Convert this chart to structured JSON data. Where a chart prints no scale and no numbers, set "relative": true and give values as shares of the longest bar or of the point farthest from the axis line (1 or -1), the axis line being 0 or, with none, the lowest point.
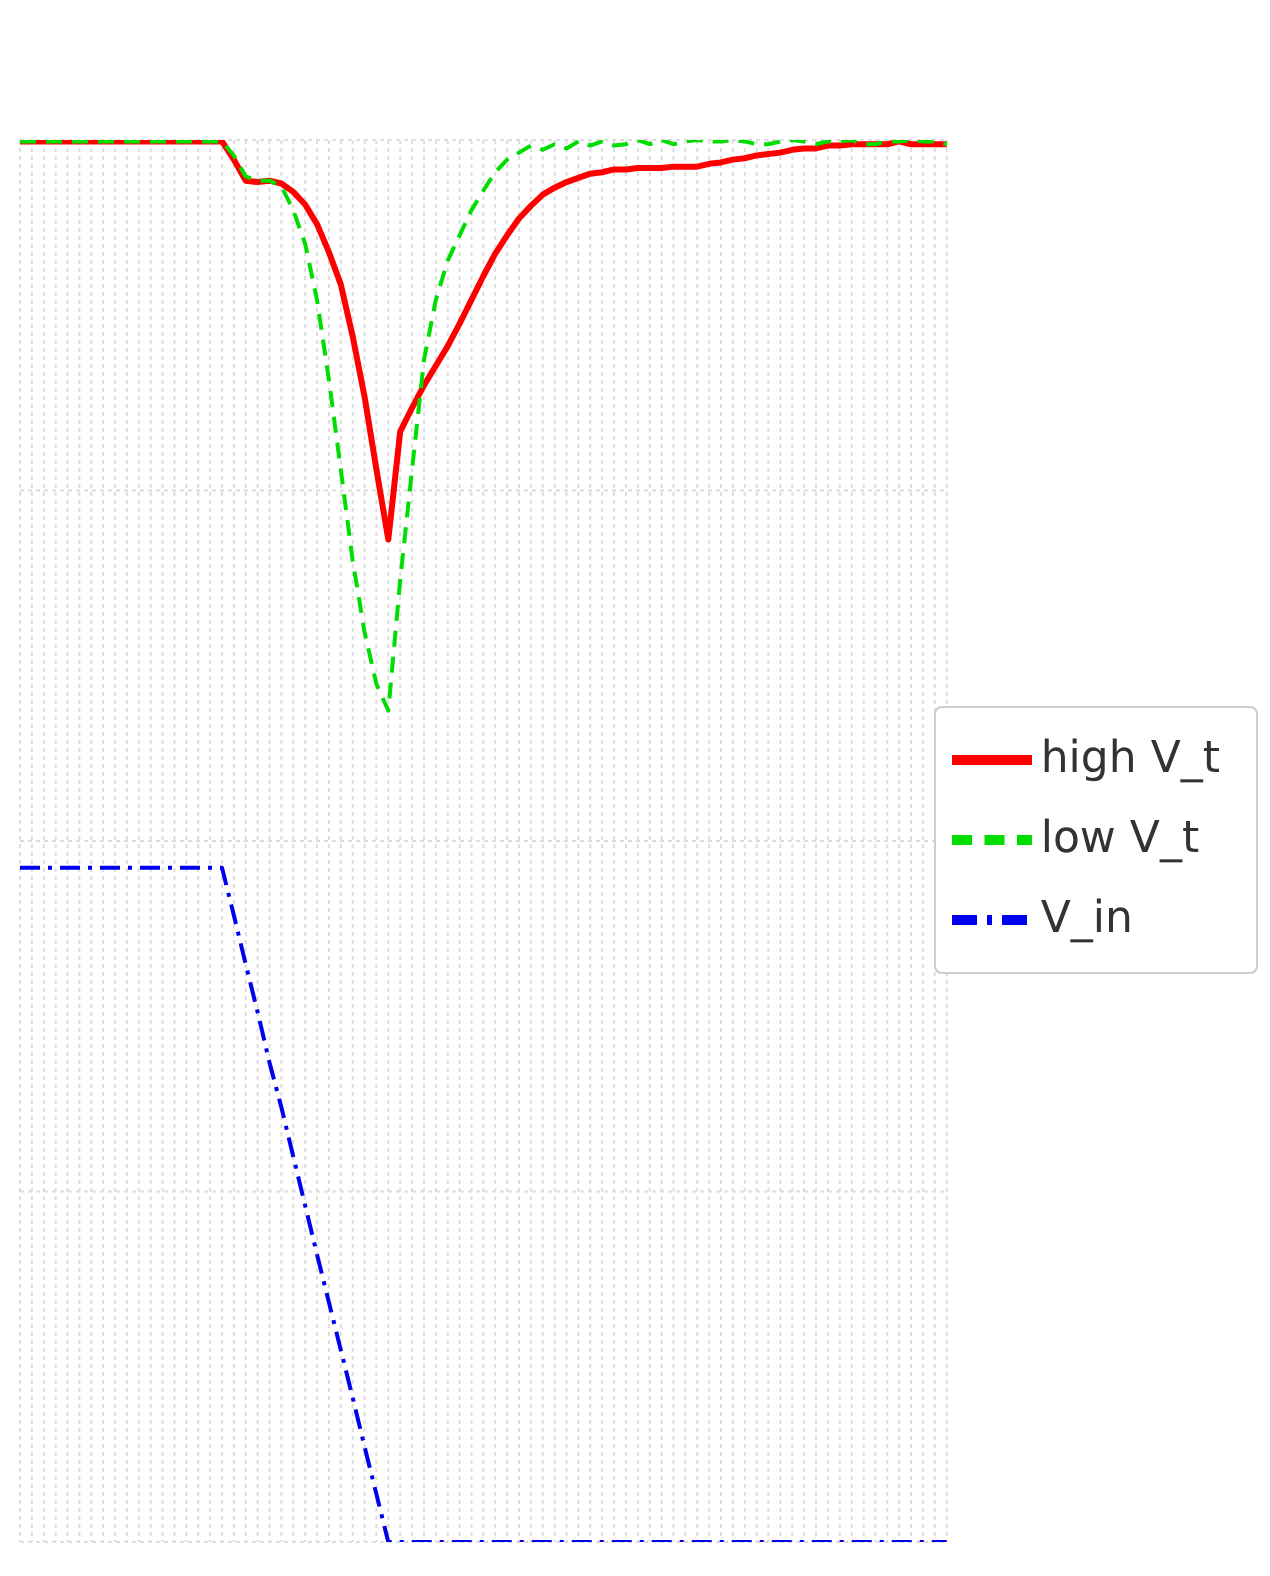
{
  "chart_data": {
    "type": "line",
    "relative": true,
    "grid": true,
    "legend": "right",
    "marker": "none",
    "categories": [
      null,
      null,
      null,
      null,
      null,
      null,
      null,
      null,
      null,
      null,
      null,
      null,
      null,
      null,
      null,
      null,
      null,
      null,
      null,
      null,
      null,
      null,
      null,
      null,
      null,
      null,
      null,
      null,
      null,
      null,
      null,
      null,
      null,
      null,
      null,
      null,
      null,
      null,
      null,
      null,
      null,
      null,
      null,
      null,
      null,
      null,
      null,
      null,
      null,
      null,
      null,
      null,
      null,
      null,
      null,
      null,
      null,
      null,
      null,
      null,
      null,
      null,
      null,
      null,
      null,
      null,
      null,
      null,
      null,
      null,
      null,
      null,
      null,
      null,
      null,
      null,
      null,
      null,
      null
    ],
    "series": [
      {
        "name": "high V_t",
        "color": "#ff0000",
        "line_style": "solid",
        "values": [
          0.999,
          0.999,
          0.999,
          0.999,
          0.999,
          0.999,
          0.999,
          0.999,
          0.999,
          0.999,
          0.999,
          0.999,
          0.999,
          0.999,
          0.999,
          0.999,
          0.999,
          0.999,
          0.986,
          0.971,
          0.97,
          0.971,
          0.969,
          0.963,
          0.954,
          0.94,
          0.92,
          0.897,
          0.86,
          0.817,
          0.765,
          0.715,
          0.792,
          0.809,
          0.825,
          0.839,
          0.853,
          0.869,
          0.886,
          0.903,
          0.919,
          0.932,
          0.944,
          0.953,
          0.961,
          0.966,
          0.97,
          0.973,
          0.976,
          0.977,
          0.979,
          0.979,
          0.98,
          0.98,
          0.98,
          0.981,
          0.981,
          0.981,
          0.983,
          0.984,
          0.986,
          0.987,
          0.989,
          0.99,
          0.991,
          0.993,
          0.994,
          0.994,
          0.996,
          0.996,
          0.997,
          0.997,
          0.997,
          0.997,
          0.999,
          0.997,
          0.997,
          0.997,
          0.997
        ]
      },
      {
        "name": "low V_t",
        "color": "#00dd00",
        "line_style": "dashed",
        "values": [
          0.999,
          0.999,
          0.999,
          0.999,
          0.999,
          0.999,
          0.999,
          0.999,
          0.999,
          0.999,
          0.999,
          0.999,
          0.999,
          0.999,
          0.999,
          0.999,
          0.999,
          0.999,
          0.989,
          0.974,
          0.971,
          0.971,
          0.967,
          0.95,
          0.926,
          0.886,
          0.829,
          0.765,
          0.7,
          0.649,
          0.612,
          0.593,
          0.686,
          0.765,
          0.843,
          0.886,
          0.914,
          0.932,
          0.95,
          0.964,
          0.977,
          0.986,
          0.991,
          0.996,
          0.993,
          0.997,
          0.994,
          0.999,
          0.996,
          0.999,
          0.996,
          0.997,
          1,
          0.997,
          1,
          0.997,
          0.999,
          1,
          0.999,
          0.999,
          1,
          0.999,
          0.997,
          0.997,
          0.999,
          1,
          0.999,
          0.997,
          0.999,
          0.999,
          1,
          0.997,
          0.997,
          0.999,
          0.999,
          1,
          0.999,
          0.999,
          0.997
        ]
      },
      {
        "name": "V_in",
        "color": "#0000ee",
        "line_style": "dashdot",
        "values": [
          0.481,
          0.481,
          0.481,
          0.481,
          0.481,
          0.481,
          0.481,
          0.481,
          0.481,
          0.481,
          0.481,
          0.481,
          0.481,
          0.481,
          0.481,
          0.481,
          0.481,
          0.481,
          0.447,
          0.412,
          0.378,
          0.342,
          0.31,
          0.275,
          0.24,
          0.205,
          0.171,
          0.137,
          0.103,
          0.068,
          0.034,
          0,
          0,
          0,
          0,
          0,
          0,
          0,
          0,
          0,
          0,
          0,
          0,
          0,
          0,
          0,
          0,
          0,
          0,
          0,
          0,
          0,
          0,
          0,
          0,
          0,
          0,
          0,
          0,
          0,
          0,
          0,
          0,
          0,
          0,
          0,
          0,
          0,
          0,
          0,
          0,
          0,
          0,
          0,
          0,
          0,
          0,
          0,
          0
        ]
      }
    ]
  }
}
